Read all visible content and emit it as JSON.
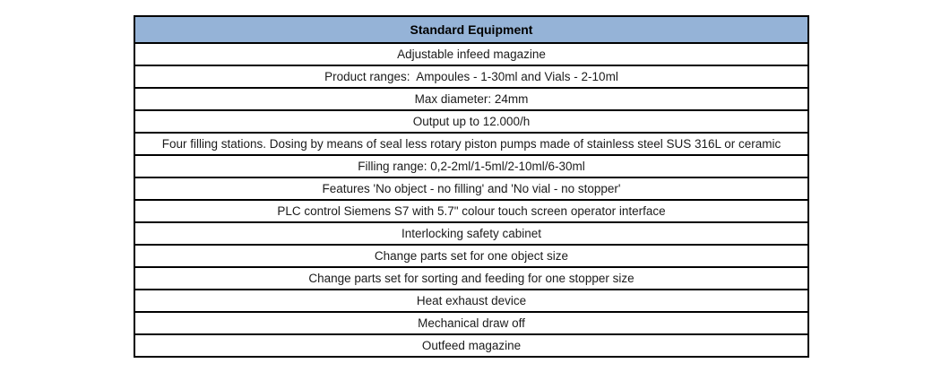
{
  "table": {
    "header": "Standard Equipment",
    "rows": [
      "Adjustable infeed magazine",
      "Product ranges:  Ampoules - 1-30ml and Vials - 2-10ml",
      "Max diameter: 24mm",
      "Output up to 12.000/h",
      "Four filling stations. Dosing by means of seal less rotary piston pumps made of stainless steel SUS 316L or ceramic",
      "Filling range: 0,2-2ml/1-5ml/2-10ml/6-30ml",
      "Features 'No object - no filling' and 'No vial - no stopper'",
      "PLC control Siemens S7 with 5.7\" colour touch screen operator interface",
      "Interlocking safety cabinet",
      "Change parts set for one object size",
      "Change parts set for sorting and feeding for one stopper size",
      "Heat exhaust device",
      "Mechanical draw off",
      "Outfeed magazine"
    ],
    "colors": {
      "header_bg": "#95B3D7",
      "border": "#000000",
      "text": "#1b1b1b"
    }
  }
}
